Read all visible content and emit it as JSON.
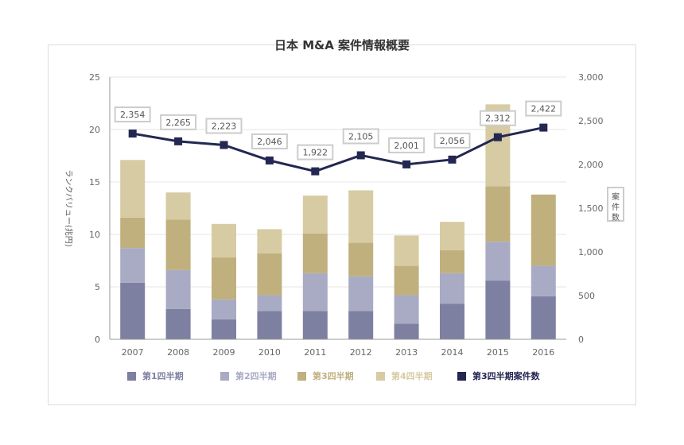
{
  "chart_data": {
    "type": "bar",
    "title": "日本 M&A 案件情報概要",
    "categories": [
      "2007",
      "2008",
      "2009",
      "2010",
      "2011",
      "2012",
      "2013",
      "2014",
      "2015",
      "2016"
    ],
    "series": [
      {
        "name": "第1四半期",
        "type": "bar",
        "axis": "left",
        "color": "#7e80a1",
        "values": [
          5.4,
          2.9,
          1.9,
          2.7,
          2.7,
          2.7,
          1.5,
          3.4,
          5.6,
          4.1
        ]
      },
      {
        "name": "第2四半期",
        "type": "bar",
        "axis": "left",
        "color": "#a9abc4",
        "values": [
          3.3,
          3.7,
          1.9,
          1.5,
          3.6,
          3.3,
          2.7,
          2.9,
          3.7,
          2.9
        ]
      },
      {
        "name": "第3四半期",
        "type": "bar",
        "axis": "left",
        "color": "#bfb07e",
        "values": [
          2.9,
          4.8,
          4.0,
          4.0,
          3.8,
          3.2,
          2.8,
          2.2,
          5.3,
          6.8
        ]
      },
      {
        "name": "第4四半期",
        "type": "bar",
        "axis": "left",
        "color": "#d7cba3",
        "values": [
          5.5,
          2.6,
          3.2,
          2.3,
          3.6,
          5.0,
          2.9,
          2.7,
          7.8,
          0
        ]
      },
      {
        "name": "第3四半期案件数",
        "type": "line",
        "axis": "right",
        "color": "#232752",
        "values": [
          2354,
          2265,
          2223,
          2046,
          1922,
          2105,
          2001,
          2056,
          2312,
          2422
        ],
        "labels": [
          "2,354",
          "2,265",
          "2,223",
          "2,046",
          "1,922",
          "2,105",
          "2,001",
          "2,056",
          "2,312",
          "2,422"
        ]
      }
    ],
    "ylabel": "ランクバリュー(兆円)",
    "y2label": "案件数",
    "ylim": [
      0,
      25
    ],
    "y2lim": [
      0,
      3000
    ],
    "yticks": [
      "0",
      "5",
      "10",
      "15",
      "20",
      "25"
    ],
    "y2ticks": [
      "0",
      "500",
      "1,000",
      "1,500",
      "2,000",
      "2,500",
      "3,000"
    ],
    "grid": true,
    "legend_position": "bottom"
  }
}
